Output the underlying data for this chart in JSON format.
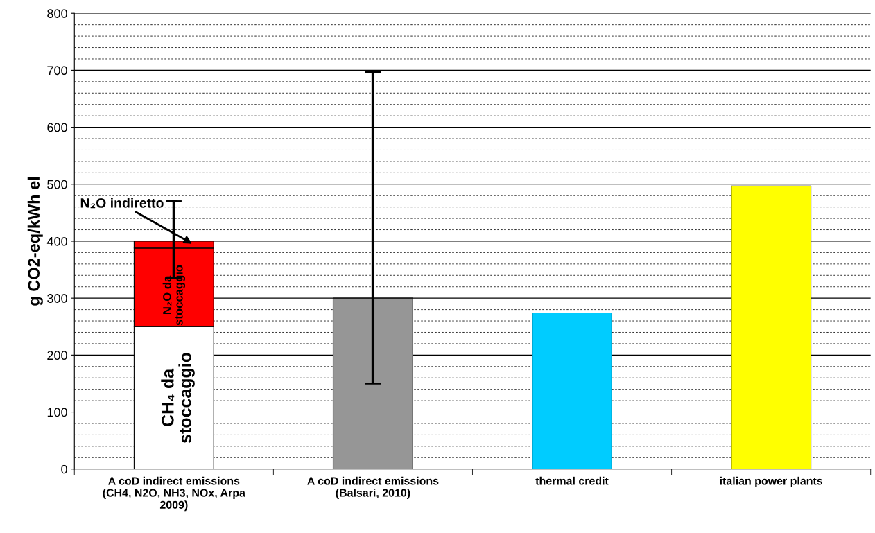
{
  "chart_data": {
    "type": "bar",
    "stacked": true,
    "ylabel": "g CO2-eq/kWh el",
    "categories": [
      "A coD indirect emissions\n(CH4, N2O, NH3, NOx, Arpa\n2009)",
      "A coD indirect emissions\n(Balsari, 2010)",
      "thermal credit",
      "italian power plants"
    ],
    "series": [
      {
        "name": "CH₄ da stoccaggio",
        "color": "#ffffff",
        "values": [
          250,
          null,
          null,
          null
        ]
      },
      {
        "colors": [
          null,
          "#969696",
          "#00ccff",
          "#ffff00"
        ],
        "values": [
          null,
          300,
          274,
          497
        ],
        "errors": [
          null,
          [
            150,
            697
          ],
          null,
          null
        ]
      },
      {
        "name": "N₂O da stoccaggio",
        "color": "#ff0000",
        "values": [
          138,
          null,
          null,
          null
        ]
      },
      {
        "name": "N₂O indiretto",
        "color": "#ff0000",
        "values": [
          12,
          null,
          null,
          null
        ],
        "errors": [
          [
            335,
            470
          ],
          null,
          null,
          null
        ]
      }
    ],
    "ylim": [
      0,
      800
    ],
    "yticks": [
      0,
      {
        "value": 20,
        "label": null
      },
      {
        "value": 40,
        "label": null
      },
      {
        "value": 60,
        "label": null
      },
      {
        "value": 80,
        "label": null
      },
      100,
      {
        "value": 120,
        "label": null
      },
      {
        "value": 140,
        "label": null
      },
      {
        "value": 160,
        "label": null
      },
      {
        "value": 180,
        "label": null
      },
      200,
      {
        "value": 220,
        "label": null
      },
      {
        "value": 240,
        "label": null
      },
      {
        "value": 260,
        "label": null
      },
      {
        "value": 280,
        "label": null
      },
      300,
      {
        "value": 320,
        "label": null
      },
      {
        "value": 340,
        "label": null
      },
      {
        "value": 360,
        "label": null
      },
      {
        "value": 380,
        "label": null
      },
      400,
      {
        "value": 420,
        "label": null
      },
      {
        "value": 440,
        "label": null
      },
      {
        "value": 460,
        "label": null
      },
      {
        "value": 480,
        "label": null
      },
      500,
      {
        "value": 520,
        "label": null
      },
      {
        "value": 540,
        "label": null
      },
      {
        "value": 560,
        "label": null
      },
      {
        "value": 580,
        "label": null
      },
      600,
      {
        "value": 620,
        "label": null
      },
      {
        "value": 640,
        "label": null
      },
      {
        "value": 660,
        "label": null
      },
      {
        "value": 680,
        "label": null
      },
      700,
      {
        "value": 720,
        "label": null
      },
      {
        "value": 740,
        "label": null
      },
      {
        "value": 760,
        "label": null
      },
      {
        "value": 780,
        "label": null
      },
      800
    ],
    "grid": "y",
    "legend": false
  }
}
